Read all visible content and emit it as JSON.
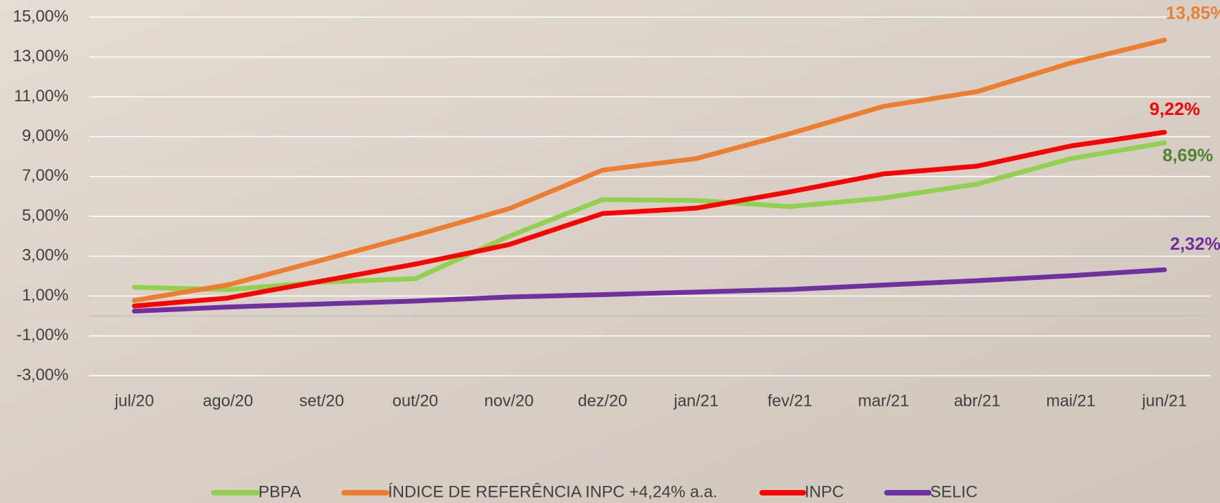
{
  "chart_data": {
    "type": "line",
    "categories": [
      "jul/20",
      "ago/20",
      "set/20",
      "out/20",
      "nov/20",
      "dez/20",
      "jan/21",
      "fev/21",
      "mar/21",
      "abr/21",
      "mai/21",
      "jun/21"
    ],
    "series": [
      {
        "name": "PBPA",
        "color": "#92d050",
        "label_color": "#548235",
        "values": [
          1.44,
          1.32,
          1.7,
          1.87,
          4.0,
          5.84,
          5.8,
          5.49,
          5.92,
          6.62,
          7.9,
          8.69
        ],
        "value_labels": [
          null,
          null,
          null,
          null,
          null,
          null,
          null,
          null,
          null,
          null,
          null,
          "8,69%"
        ]
      },
      {
        "name": "ÍNDICE DE REFERÊNCIA INPC +4,24% a.a.",
        "color": "#ed7d31",
        "label_color": "#ed7d31",
        "values": [
          0.78,
          1.56,
          2.8,
          4.05,
          5.38,
          7.32,
          7.9,
          9.15,
          10.52,
          11.26,
          12.7,
          13.85
        ],
        "value_labels": [
          null,
          null,
          null,
          null,
          null,
          null,
          null,
          null,
          null,
          null,
          null,
          "13,85%"
        ]
      },
      {
        "name": "INPC",
        "color": "#ff0000",
        "label_color": "#ff0000",
        "values": [
          0.5,
          0.9,
          1.75,
          2.6,
          3.58,
          5.14,
          5.41,
          6.23,
          7.13,
          7.52,
          8.53,
          9.22
        ],
        "value_labels": [
          null,
          null,
          null,
          null,
          null,
          null,
          null,
          null,
          null,
          null,
          null,
          "9,22%"
        ]
      },
      {
        "name": "SELIC",
        "color": "#7030a0",
        "label_color": "#7030a0",
        "values": [
          0.24,
          0.45,
          0.6,
          0.75,
          0.95,
          1.07,
          1.2,
          1.33,
          1.55,
          1.77,
          2.02,
          2.32
        ],
        "value_labels": [
          null,
          null,
          null,
          null,
          null,
          null,
          null,
          null,
          null,
          null,
          null,
          "2,32%"
        ]
      }
    ],
    "ylim": [
      -3,
      15
    ],
    "yticks": [
      {
        "value": -3,
        "label": "-3,00%"
      },
      {
        "value": -1,
        "label": "-1,00%"
      },
      {
        "value": 1,
        "label": "1,00%"
      },
      {
        "value": 3,
        "label": "3,00%"
      },
      {
        "value": 5,
        "label": "5,00%"
      },
      {
        "value": 7,
        "label": "7,00%"
      },
      {
        "value": 9,
        "label": "9,00%"
      },
      {
        "value": 11,
        "label": "11,00%"
      },
      {
        "value": 13,
        "label": "13,00%"
      },
      {
        "value": 15,
        "label": "15,00%"
      }
    ],
    "grid": true,
    "legend": "bottom"
  }
}
